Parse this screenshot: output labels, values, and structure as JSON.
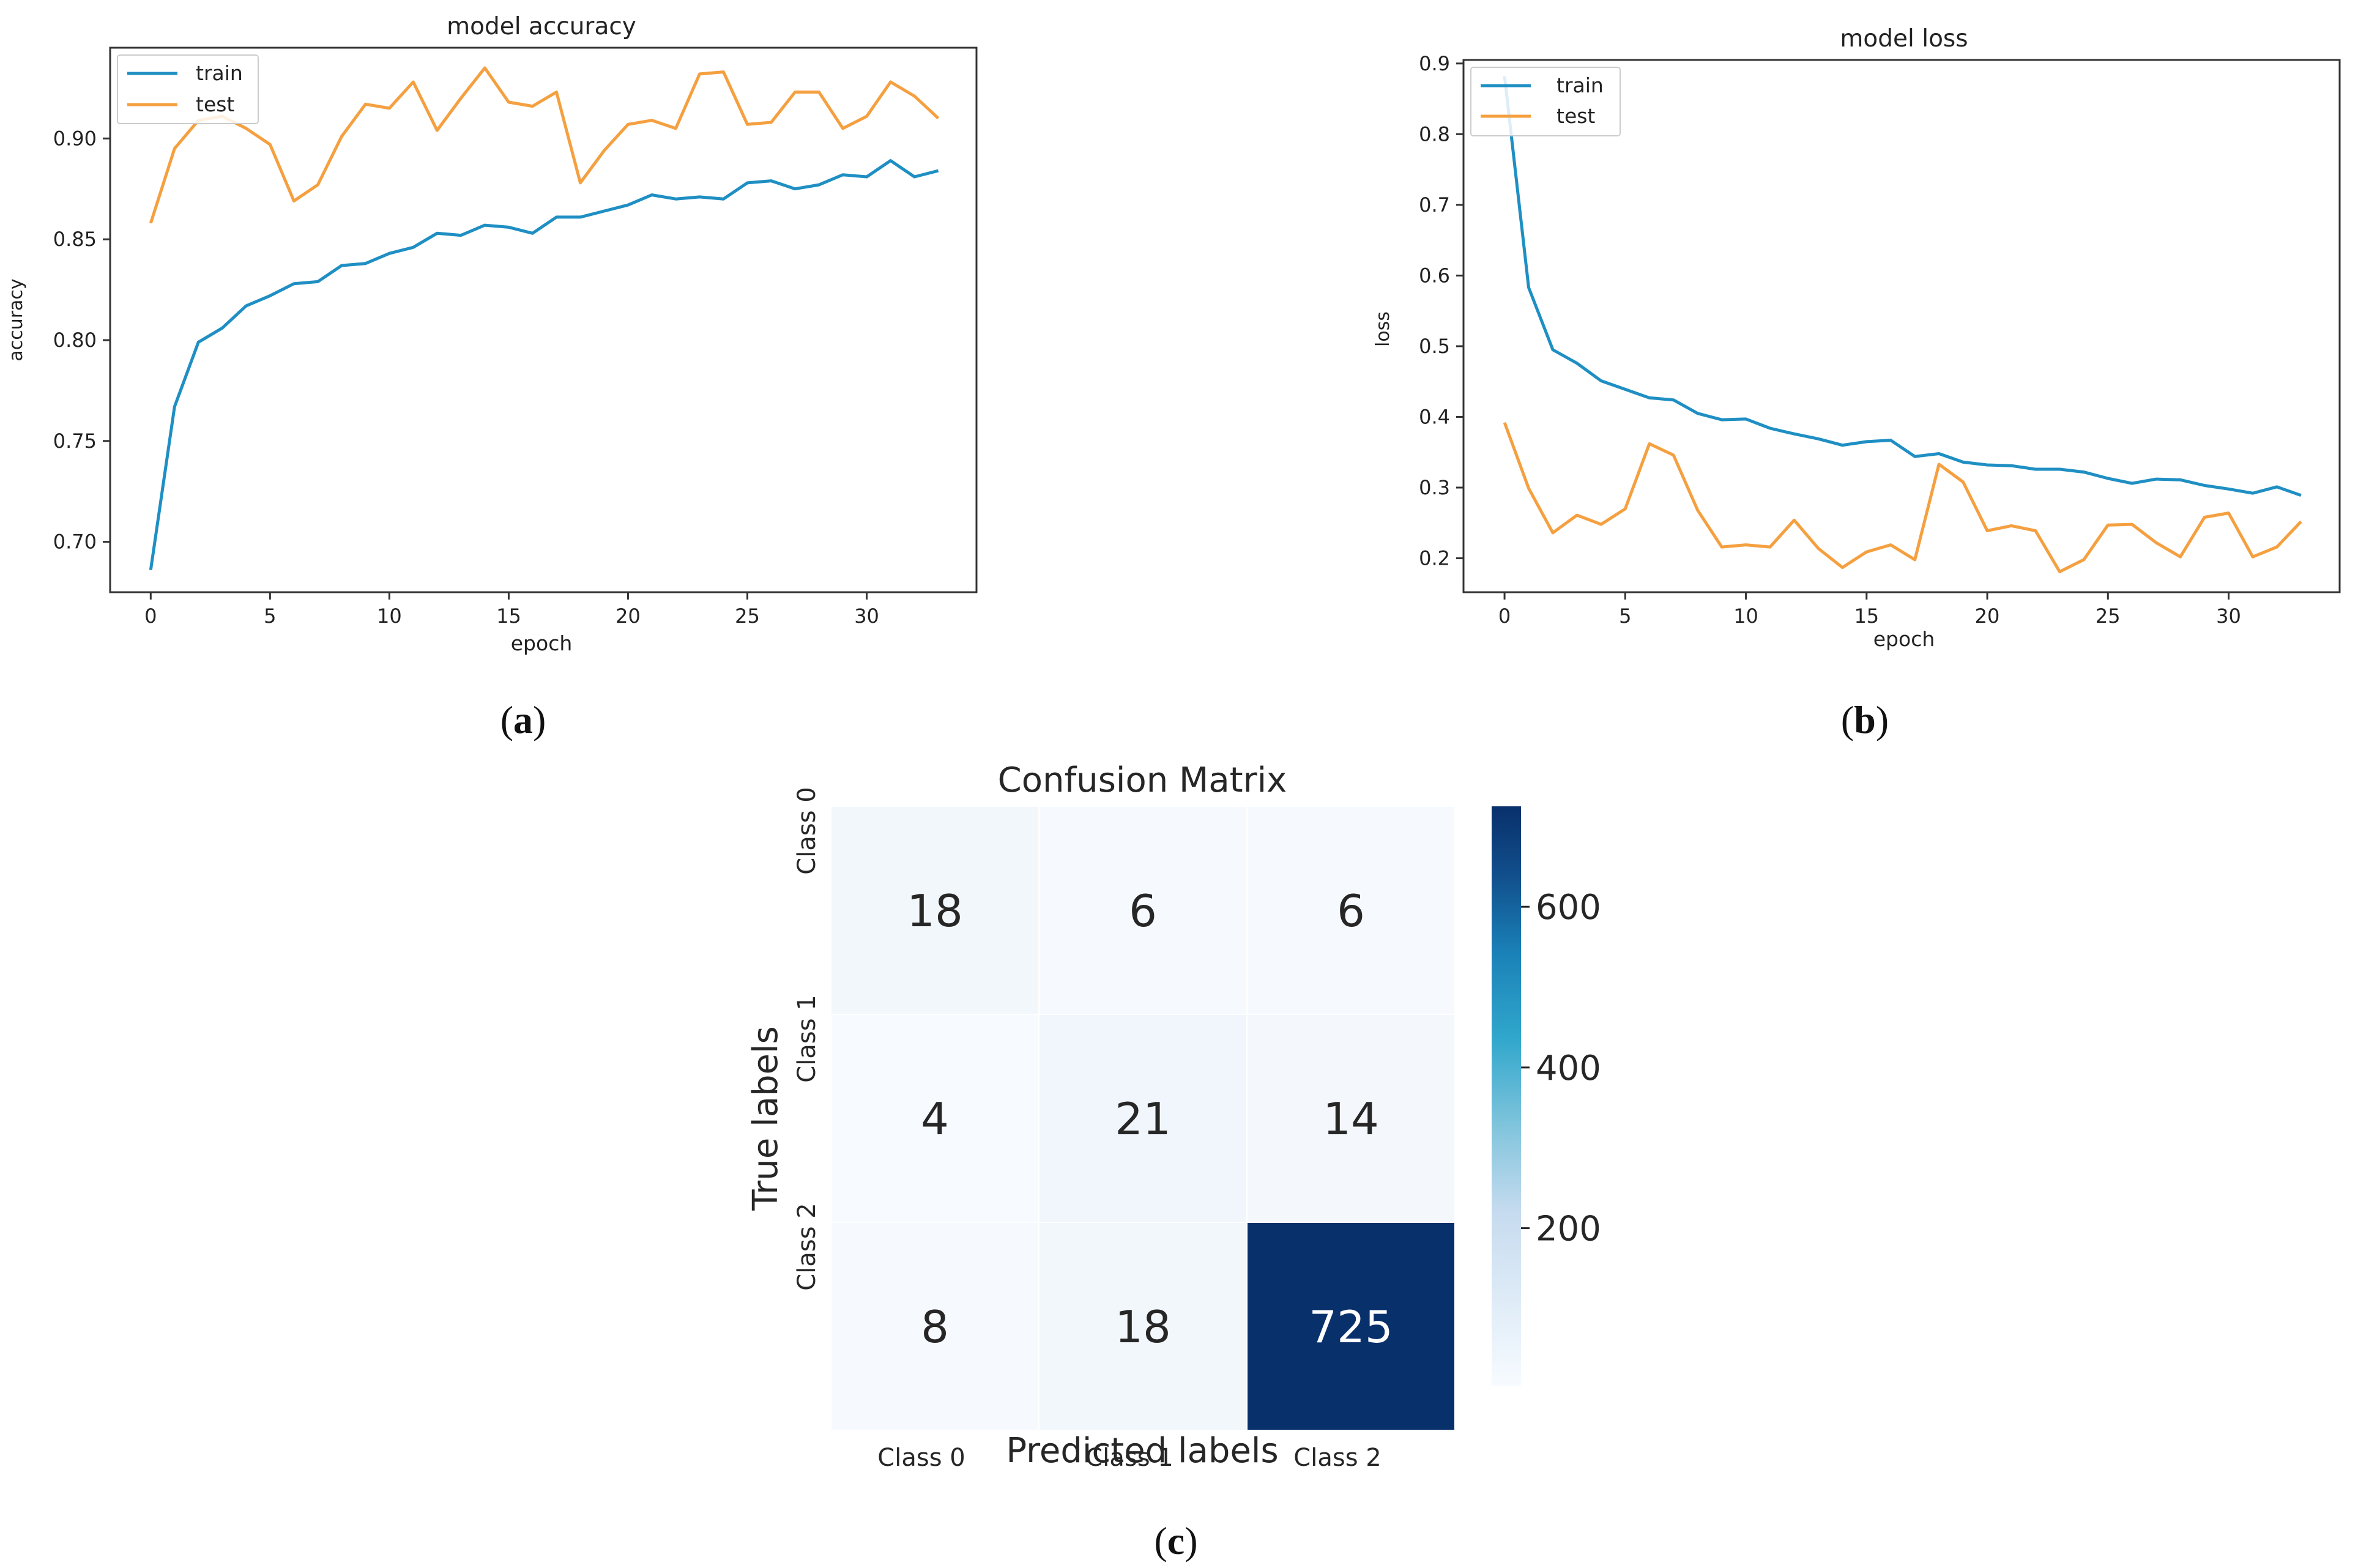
{
  "panels": {
    "a": {
      "caption_open": "(",
      "caption_letter": "a",
      "caption_close": ")"
    },
    "b": {
      "caption_open": "(",
      "caption_letter": "b",
      "caption_close": ")"
    },
    "c": {
      "caption_open": "(",
      "caption_letter": "c",
      "caption_close": ")"
    }
  },
  "colors": {
    "train": "#1f8fc3",
    "test": "#f5a040",
    "heat_low": "#f7fbff",
    "heat_high": "#08306b"
  },
  "chart_data": [
    {
      "type": "line",
      "title": "model accuracy",
      "xlabel": "epoch",
      "ylabel": "accuracy",
      "xlim": [
        -1.7,
        34.6
      ],
      "ylim": [
        0.675,
        0.945
      ],
      "x_ticks": [
        0,
        5,
        10,
        15,
        20,
        25,
        30
      ],
      "y_ticks": [
        0.7,
        0.75,
        0.8,
        0.85,
        0.9
      ],
      "y_tick_labels": [
        "0.70",
        "0.75",
        "0.80",
        "0.85",
        "0.90"
      ],
      "grid": false,
      "legend": "upper left",
      "x": [
        0,
        1,
        2,
        3,
        4,
        5,
        6,
        7,
        8,
        9,
        10,
        11,
        12,
        13,
        14,
        15,
        16,
        17,
        18,
        19,
        20,
        21,
        22,
        23,
        24,
        25,
        26,
        27,
        28,
        29,
        30,
        31,
        32,
        33
      ],
      "series": [
        {
          "name": "train",
          "values": [
            0.686,
            0.767,
            0.799,
            0.806,
            0.817,
            0.822,
            0.828,
            0.829,
            0.837,
            0.838,
            0.843,
            0.846,
            0.853,
            0.852,
            0.857,
            0.856,
            0.853,
            0.861,
            0.861,
            0.864,
            0.867,
            0.872,
            0.87,
            0.871,
            0.87,
            0.878,
            0.879,
            0.875,
            0.877,
            0.882,
            0.881,
            0.889,
            0.881,
            0.884
          ]
        },
        {
          "name": "test",
          "values": [
            0.858,
            0.895,
            0.909,
            0.911,
            0.905,
            0.897,
            0.869,
            0.877,
            0.901,
            0.917,
            0.915,
            0.928,
            0.904,
            0.92,
            0.935,
            0.918,
            0.916,
            0.923,
            0.878,
            0.894,
            0.907,
            0.909,
            0.905,
            0.932,
            0.933,
            0.907,
            0.908,
            0.923,
            0.923,
            0.905,
            0.911,
            0.928,
            0.921,
            0.91
          ]
        }
      ]
    },
    {
      "type": "line",
      "title": "model loss",
      "xlabel": "epoch",
      "ylabel": "loss",
      "xlim": [
        -1.7,
        34.6
      ],
      "ylim": [
        0.152,
        0.905
      ],
      "x_ticks": [
        0,
        5,
        10,
        15,
        20,
        25,
        30
      ],
      "y_ticks": [
        0.2,
        0.3,
        0.4,
        0.5,
        0.6,
        0.7,
        0.8,
        0.9
      ],
      "y_tick_labels": [
        "0.2",
        "0.3",
        "0.4",
        "0.5",
        "0.6",
        "0.7",
        "0.8",
        "0.9"
      ],
      "grid": false,
      "legend": "upper left",
      "x": [
        0,
        1,
        2,
        3,
        4,
        5,
        6,
        7,
        8,
        9,
        10,
        11,
        12,
        13,
        14,
        15,
        16,
        17,
        18,
        19,
        20,
        21,
        22,
        23,
        24,
        25,
        26,
        27,
        28,
        29,
        30,
        31,
        32,
        33
      ],
      "series": [
        {
          "name": "train",
          "values": [
            0.882,
            0.583,
            0.495,
            0.476,
            0.451,
            0.439,
            0.427,
            0.424,
            0.405,
            0.396,
            0.397,
            0.384,
            0.376,
            0.369,
            0.36,
            0.365,
            0.367,
            0.344,
            0.348,
            0.336,
            0.332,
            0.331,
            0.326,
            0.326,
            0.322,
            0.313,
            0.306,
            0.312,
            0.311,
            0.303,
            0.298,
            0.292,
            0.301,
            0.289
          ]
        },
        {
          "name": "test",
          "values": [
            0.392,
            0.299,
            0.236,
            0.261,
            0.248,
            0.27,
            0.362,
            0.346,
            0.268,
            0.216,
            0.219,
            0.216,
            0.254,
            0.214,
            0.187,
            0.209,
            0.219,
            0.198,
            0.333,
            0.308,
            0.239,
            0.246,
            0.239,
            0.181,
            0.198,
            0.247,
            0.248,
            0.222,
            0.202,
            0.258,
            0.264,
            0.202,
            0.216,
            0.252
          ]
        }
      ]
    },
    {
      "type": "heatmap",
      "title": "Confusion Matrix",
      "xlabel": "Predicted labels",
      "ylabel": "True labels",
      "x_categories": [
        "Class 0",
        "Class 1",
        "Class 2"
      ],
      "y_categories": [
        "Class 0",
        "Class 1",
        "Class 2"
      ],
      "values": [
        [
          18,
          6,
          6
        ],
        [
          4,
          21,
          14
        ],
        [
          8,
          18,
          725
        ]
      ],
      "colorbar_ticks": [
        200,
        400,
        600
      ],
      "colorbar_range": [
        4,
        725
      ],
      "colormap": "Blues"
    }
  ]
}
